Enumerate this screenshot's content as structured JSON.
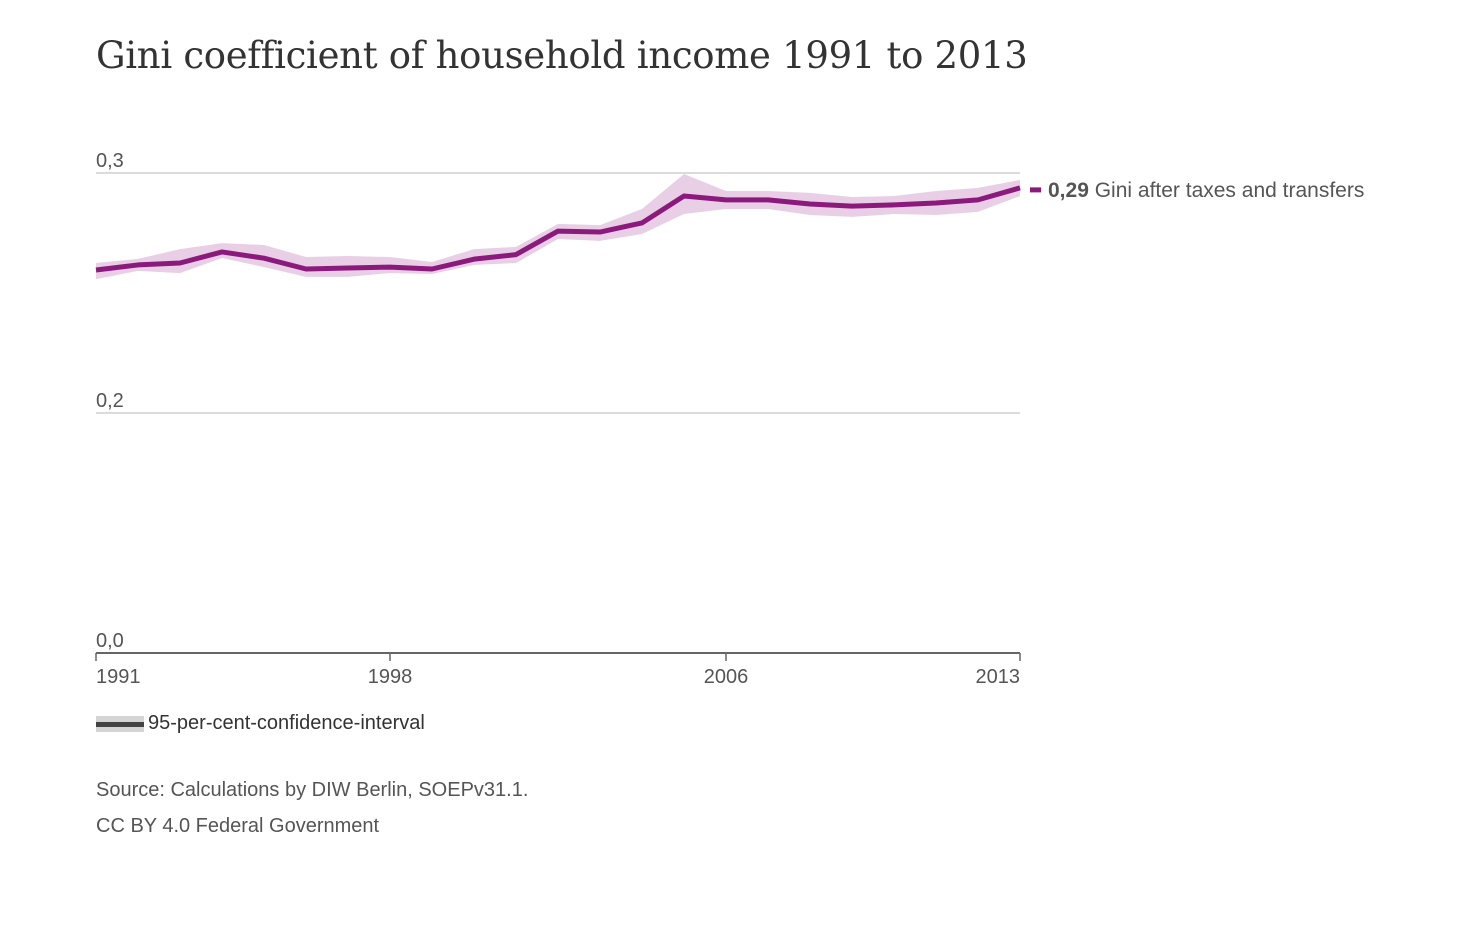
{
  "title": "Gini coefficient of household income 1991 to 2013",
  "chart_data": {
    "type": "area",
    "title": "Gini coefficient of household income 1991 to 2013",
    "x": [
      1991,
      1992,
      1993,
      1994,
      1995,
      1996,
      1997,
      1998,
      1999,
      2000,
      2001,
      2002,
      2003,
      2004,
      2005,
      2006,
      2007,
      2008,
      2009,
      2010,
      2011,
      2012,
      2013
    ],
    "series": [
      {
        "name": "Gini after taxes and transfers",
        "values": [
          0.2596,
          0.2617,
          0.2625,
          0.2671,
          0.2645,
          0.26,
          0.2604,
          0.2608,
          0.26,
          0.2641,
          0.266,
          0.2758,
          0.2754,
          0.2792,
          0.2904,
          0.2888,
          0.2888,
          0.2871,
          0.2862,
          0.2867,
          0.2875,
          0.2888,
          0.2938
        ],
        "ci_lower": [
          0.2558,
          0.2592,
          0.2583,
          0.2646,
          0.2608,
          0.2567,
          0.2567,
          0.2583,
          0.2579,
          0.2617,
          0.2625,
          0.2725,
          0.2717,
          0.2746,
          0.2829,
          0.285,
          0.285,
          0.2825,
          0.2817,
          0.2829,
          0.2825,
          0.2838,
          0.2904
        ],
        "ci_upper": [
          0.2625,
          0.2642,
          0.2683,
          0.2708,
          0.27,
          0.265,
          0.2654,
          0.265,
          0.2629,
          0.2683,
          0.2692,
          0.2788,
          0.2783,
          0.285,
          0.2996,
          0.2925,
          0.2925,
          0.2917,
          0.29,
          0.2904,
          0.2925,
          0.2938,
          0.2971
        ],
        "color": "#8b1a7c",
        "ci_color": "#e8cfe6",
        "end_value_label": "0,29",
        "end_label": "Gini after taxes and transfers"
      }
    ],
    "yticks": [
      "0,0",
      "0,2",
      "0,3"
    ],
    "ytick_values": [
      0.0,
      0.2,
      0.3
    ],
    "xticks": [
      1991,
      1998,
      2006,
      2013
    ],
    "xlim": [
      1991,
      2013
    ],
    "ylim": [
      0.0,
      0.3
    ],
    "grid": true,
    "axis_break": "between 0,0 and 0,2 the scale is compressed"
  },
  "legend": {
    "label": "95-per-cent-confidence-interval"
  },
  "source": {
    "line1": "Source: Calculations by DIW Berlin, SOEPv31.1.",
    "line2": "CC BY 4.0 Federal Government"
  }
}
